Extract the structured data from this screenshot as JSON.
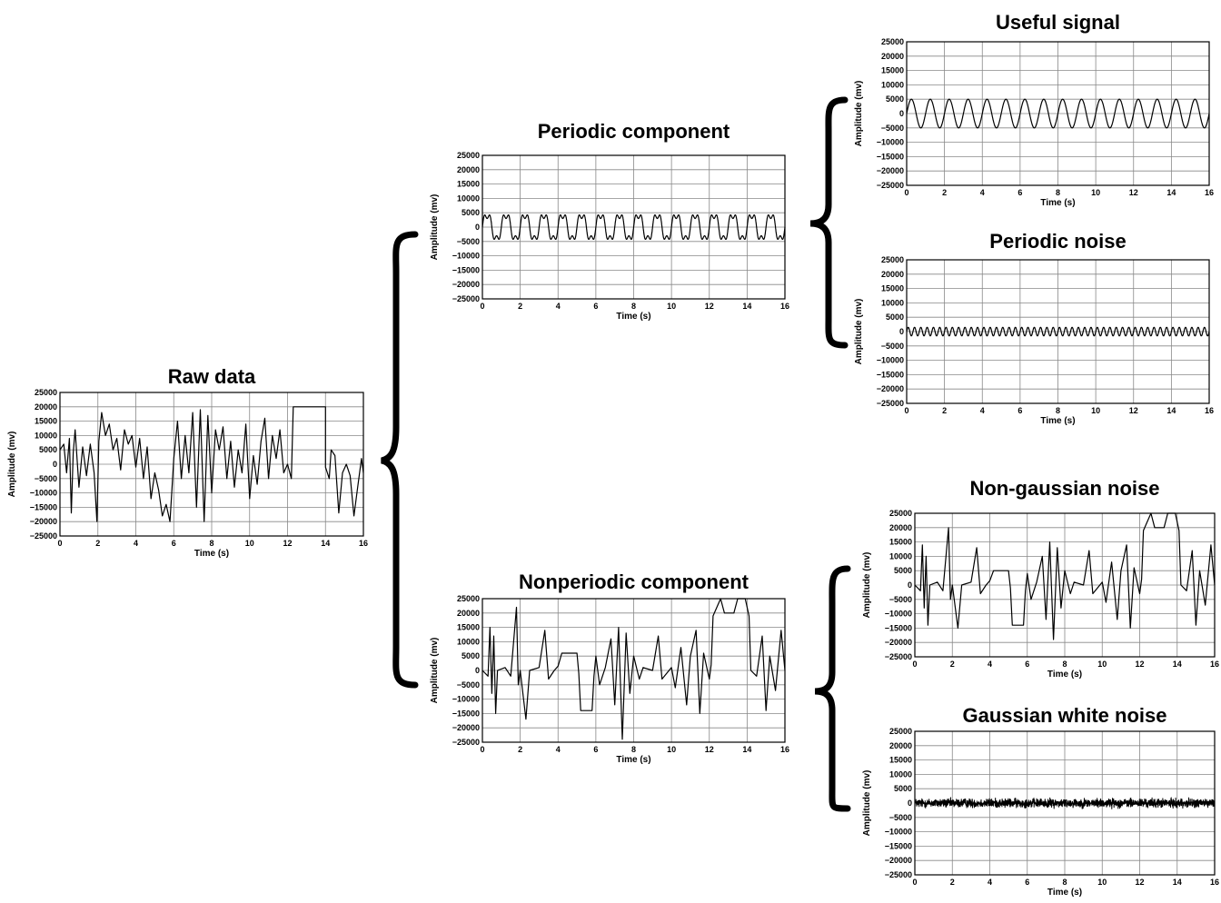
{
  "chart_data": [
    {
      "id": "raw",
      "type": "line",
      "title": "Raw data",
      "xlabel": "Time (s)",
      "ylabel": "Amplitude (mv)",
      "xlim": [
        0,
        16
      ],
      "ylim": [
        -25000,
        25000
      ],
      "xticks": [
        "0",
        "2",
        "4",
        "6",
        "8",
        "10",
        "12",
        "14",
        "16"
      ],
      "yticks": [
        "25000",
        "20000",
        "15000",
        "10000",
        "5000",
        "0",
        "−5000",
        "−10000",
        "−15000",
        "−20000",
        "−25000"
      ],
      "grid": true,
      "series": [
        {
          "values": [
            [
              0,
              5000
            ],
            [
              0.2,
              7000
            ],
            [
              0.35,
              -3000
            ],
            [
              0.5,
              9000
            ],
            [
              0.6,
              -17000
            ],
            [
              0.7,
              4000
            ],
            [
              0.8,
              12000
            ],
            [
              1.0,
              -8000
            ],
            [
              1.2,
              6000
            ],
            [
              1.4,
              -4000
            ],
            [
              1.6,
              7000
            ],
            [
              1.8,
              -3000
            ],
            [
              1.95,
              -20000
            ],
            [
              2.05,
              8000
            ],
            [
              2.2,
              18000
            ],
            [
              2.4,
              10000
            ],
            [
              2.6,
              14000
            ],
            [
              2.8,
              5000
            ],
            [
              3.0,
              9000
            ],
            [
              3.2,
              -2000
            ],
            [
              3.4,
              12000
            ],
            [
              3.6,
              7000
            ],
            [
              3.8,
              10000
            ],
            [
              4.0,
              -1000
            ],
            [
              4.2,
              9000
            ],
            [
              4.4,
              -5000
            ],
            [
              4.6,
              6000
            ],
            [
              4.8,
              -12000
            ],
            [
              5.0,
              -3000
            ],
            [
              5.2,
              -9000
            ],
            [
              5.4,
              -18000
            ],
            [
              5.6,
              -14000
            ],
            [
              5.8,
              -20000
            ],
            [
              6.0,
              2000
            ],
            [
              6.2,
              15000
            ],
            [
              6.4,
              -5000
            ],
            [
              6.6,
              10000
            ],
            [
              6.8,
              -3000
            ],
            [
              7.0,
              18000
            ],
            [
              7.2,
              -15000
            ],
            [
              7.4,
              19000
            ],
            [
              7.6,
              -20000
            ],
            [
              7.8,
              17000
            ],
            [
              8.0,
              -10000
            ],
            [
              8.2,
              12000
            ],
            [
              8.4,
              5000
            ],
            [
              8.6,
              13000
            ],
            [
              8.8,
              -5000
            ],
            [
              9.0,
              8000
            ],
            [
              9.2,
              -8000
            ],
            [
              9.4,
              5000
            ],
            [
              9.6,
              -3000
            ],
            [
              9.8,
              14000
            ],
            [
              10.0,
              -12000
            ],
            [
              10.2,
              3000
            ],
            [
              10.4,
              -7000
            ],
            [
              10.6,
              8000
            ],
            [
              10.8,
              16000
            ],
            [
              11.0,
              -5000
            ],
            [
              11.2,
              10000
            ],
            [
              11.4,
              2000
            ],
            [
              11.6,
              12000
            ],
            [
              11.8,
              -3000
            ],
            [
              12.0,
              0
            ],
            [
              12.2,
              -5000
            ],
            [
              12.3,
              20000
            ],
            [
              14.0,
              20000
            ],
            [
              14.0,
              -1000
            ],
            [
              14.2,
              -5000
            ],
            [
              14.3,
              5000
            ],
            [
              14.5,
              3000
            ],
            [
              14.7,
              -17000
            ],
            [
              14.9,
              -3000
            ],
            [
              15.1,
              0
            ],
            [
              15.3,
              -4000
            ],
            [
              15.5,
              -18000
            ],
            [
              15.7,
              -8000
            ],
            [
              15.9,
              2000
            ],
            [
              16,
              -3000
            ]
          ]
        }
      ]
    },
    {
      "id": "periodic",
      "type": "line",
      "title": "Periodic component",
      "xlabel": "Time (s)",
      "ylabel": "Amplitude (mv)",
      "xlim": [
        0,
        16
      ],
      "ylim": [
        -25000,
        25000
      ],
      "xticks": [
        "0",
        "2",
        "4",
        "6",
        "8",
        "10",
        "12",
        "14",
        "16"
      ],
      "yticks": [
        "25000",
        "20000",
        "15000",
        "10000",
        "5000",
        "0",
        "−5000",
        "−10000",
        "−15000",
        "−20000",
        "−25000"
      ],
      "grid": true,
      "series": [
        {
          "values": "4500·sin(2π·1.0·t) + 1500·sin(2π·3.0·t), 0 ≤ t ≤ 16 s"
        }
      ]
    },
    {
      "id": "nonperiodic",
      "type": "line",
      "title": "Nonperiodic component",
      "xlabel": "Time (s)",
      "ylabel": "Amplitude (mv)",
      "xlim": [
        0,
        16
      ],
      "ylim": [
        -25000,
        25000
      ],
      "xticks": [
        "0",
        "2",
        "4",
        "6",
        "8",
        "10",
        "12",
        "14",
        "16"
      ],
      "yticks": [
        "25000",
        "20000",
        "15000",
        "10000",
        "5000",
        "0",
        "−5000",
        "−10000",
        "−15000",
        "−20000",
        "−25000"
      ],
      "grid": true,
      "series": [
        {
          "values": [
            [
              0,
              0
            ],
            [
              0.3,
              -2000
            ],
            [
              0.4,
              15000
            ],
            [
              0.5,
              -8000
            ],
            [
              0.6,
              12000
            ],
            [
              0.7,
              -15000
            ],
            [
              0.8,
              0
            ],
            [
              1.2,
              1000
            ],
            [
              1.5,
              -2000
            ],
            [
              1.8,
              22000
            ],
            [
              1.9,
              -5000
            ],
            [
              2.0,
              0
            ],
            [
              2.3,
              -17000
            ],
            [
              2.5,
              0
            ],
            [
              3.0,
              1000
            ],
            [
              3.3,
              14000
            ],
            [
              3.5,
              -3000
            ],
            [
              3.8,
              0
            ],
            [
              4.0,
              1500
            ],
            [
              4.2,
              6000
            ],
            [
              5.0,
              6000
            ],
            [
              5.1,
              -1000
            ],
            [
              5.2,
              -14000
            ],
            [
              5.8,
              -14000
            ],
            [
              5.9,
              -2000
            ],
            [
              6.0,
              5000
            ],
            [
              6.2,
              -5000
            ],
            [
              6.5,
              1000
            ],
            [
              6.8,
              11000
            ],
            [
              7.0,
              -12000
            ],
            [
              7.2,
              15000
            ],
            [
              7.4,
              -24000
            ],
            [
              7.6,
              13000
            ],
            [
              7.8,
              -8000
            ],
            [
              8.0,
              5000
            ],
            [
              8.3,
              -3000
            ],
            [
              8.5,
              1000
            ],
            [
              9.0,
              0
            ],
            [
              9.3,
              12000
            ],
            [
              9.5,
              -3000
            ],
            [
              10.0,
              1000
            ],
            [
              10.2,
              -6000
            ],
            [
              10.5,
              8000
            ],
            [
              10.8,
              -12000
            ],
            [
              11.0,
              5000
            ],
            [
              11.3,
              14000
            ],
            [
              11.5,
              -15000
            ],
            [
              11.7,
              6000
            ],
            [
              11.9,
              0
            ],
            [
              12.0,
              -3000
            ],
            [
              12.1,
              2000
            ],
            [
              12.2,
              19000
            ],
            [
              12.6,
              25000
            ],
            [
              12.8,
              20000
            ],
            [
              13.3,
              20000
            ],
            [
              13.5,
              25000
            ],
            [
              13.9,
              25000
            ],
            [
              14.1,
              19000
            ],
            [
              14.2,
              0
            ],
            [
              14.5,
              -2000
            ],
            [
              14.8,
              12000
            ],
            [
              15.0,
              -14000
            ],
            [
              15.2,
              5000
            ],
            [
              15.5,
              -7000
            ],
            [
              15.8,
              14000
            ],
            [
              16,
              0
            ]
          ]
        }
      ]
    },
    {
      "id": "useful",
      "type": "line",
      "title": "Useful signal",
      "xlabel": "Time (s)",
      "ylabel": "Amplitude (mv)",
      "xlim": [
        0,
        16
      ],
      "ylim": [
        -25000,
        25000
      ],
      "xticks": [
        "0",
        "2",
        "4",
        "6",
        "8",
        "10",
        "12",
        "14",
        "16"
      ],
      "yticks": [
        "25000",
        "20000",
        "15000",
        "10000",
        "5000",
        "0",
        "−5000",
        "−10000",
        "−15000",
        "−20000",
        "−25000"
      ],
      "grid": true,
      "series": [
        {
          "values": "5000·sin(2π·1.0·t), 0 ≤ t ≤ 16 s"
        }
      ]
    },
    {
      "id": "pnoise",
      "type": "line",
      "title": "Periodic noise",
      "xlabel": "Time (s)",
      "ylabel": "Amplitude (mv)",
      "xlim": [
        0,
        16
      ],
      "ylim": [
        -25000,
        25000
      ],
      "xticks": [
        "0",
        "2",
        "4",
        "6",
        "8",
        "10",
        "12",
        "14",
        "16"
      ],
      "yticks": [
        "25000",
        "20000",
        "15000",
        "10000",
        "5000",
        "0",
        "−5000",
        "−10000",
        "−15000",
        "−20000",
        "−25000"
      ],
      "grid": true,
      "series": [
        {
          "values": "1500·sin(2π·3.0·t), 0 ≤ t ≤ 16 s"
        }
      ]
    },
    {
      "id": "nongauss",
      "type": "line",
      "title": "Non-gaussian noise",
      "xlabel": "Time (s)",
      "ylabel": "Amplitude (mv)",
      "xlim": [
        0,
        16
      ],
      "ylim": [
        -25000,
        25000
      ],
      "xticks": [
        "0",
        "2",
        "4",
        "6",
        "8",
        "10",
        "12",
        "14",
        "16"
      ],
      "yticks": [
        "25000",
        "20000",
        "15000",
        "10000",
        "5000",
        "0",
        "−5000",
        "−10000",
        "−15000",
        "−20000",
        "−25000"
      ],
      "grid": true,
      "series": [
        {
          "values": [
            [
              0,
              0
            ],
            [
              0.3,
              -2000
            ],
            [
              0.4,
              14000
            ],
            [
              0.5,
              -8000
            ],
            [
              0.6,
              10000
            ],
            [
              0.7,
              -14000
            ],
            [
              0.8,
              0
            ],
            [
              1.2,
              1000
            ],
            [
              1.5,
              -2000
            ],
            [
              1.8,
              20000
            ],
            [
              1.9,
              -5000
            ],
            [
              2.0,
              0
            ],
            [
              2.3,
              -15000
            ],
            [
              2.5,
              0
            ],
            [
              3.0,
              1000
            ],
            [
              3.3,
              13000
            ],
            [
              3.5,
              -3000
            ],
            [
              3.8,
              0
            ],
            [
              4.0,
              1500
            ],
            [
              4.2,
              5000
            ],
            [
              5.0,
              5000
            ],
            [
              5.1,
              -1000
            ],
            [
              5.2,
              -14000
            ],
            [
              5.8,
              -14000
            ],
            [
              5.9,
              -2000
            ],
            [
              6.0,
              4000
            ],
            [
              6.2,
              -5000
            ],
            [
              6.5,
              1000
            ],
            [
              6.8,
              10000
            ],
            [
              7.0,
              -12000
            ],
            [
              7.2,
              15000
            ],
            [
              7.4,
              -19000
            ],
            [
              7.6,
              13000
            ],
            [
              7.8,
              -8000
            ],
            [
              8.0,
              5000
            ],
            [
              8.3,
              -3000
            ],
            [
              8.5,
              1000
            ],
            [
              9.0,
              0
            ],
            [
              9.3,
              12000
            ],
            [
              9.5,
              -3000
            ],
            [
              10.0,
              1000
            ],
            [
              10.2,
              -6000
            ],
            [
              10.5,
              8000
            ],
            [
              10.8,
              -12000
            ],
            [
              11.0,
              5000
            ],
            [
              11.3,
              14000
            ],
            [
              11.5,
              -15000
            ],
            [
              11.7,
              6000
            ],
            [
              11.9,
              0
            ],
            [
              12.0,
              -3000
            ],
            [
              12.1,
              2000
            ],
            [
              12.2,
              19000
            ],
            [
              12.6,
              25000
            ],
            [
              12.8,
              20000
            ],
            [
              13.3,
              20000
            ],
            [
              13.5,
              25000
            ],
            [
              13.9,
              25000
            ],
            [
              14.1,
              19000
            ],
            [
              14.2,
              0
            ],
            [
              14.5,
              -2000
            ],
            [
              14.8,
              12000
            ],
            [
              15.0,
              -14000
            ],
            [
              15.2,
              5000
            ],
            [
              15.5,
              -7000
            ],
            [
              15.8,
              14000
            ],
            [
              16,
              0
            ]
          ]
        }
      ]
    },
    {
      "id": "gauss",
      "type": "line",
      "title": "Gaussian white noise",
      "xlabel": "Time (s)",
      "ylabel": "Amplitude (mv)",
      "xlim": [
        0,
        16
      ],
      "ylim": [
        -25000,
        25000
      ],
      "xticks": [
        "0",
        "2",
        "4",
        "6",
        "8",
        "10",
        "12",
        "14",
        "16"
      ],
      "yticks": [
        "25000",
        "20000",
        "15000",
        "10000",
        "5000",
        "0",
        "−5000",
        "−10000",
        "−15000",
        "−20000",
        "−25000"
      ],
      "grid": true,
      "series": [
        {
          "values": "zero-mean white noise, amplitude ≈ ±1500 mv, 0 ≤ t ≤ 16 s"
        }
      ]
    }
  ]
}
